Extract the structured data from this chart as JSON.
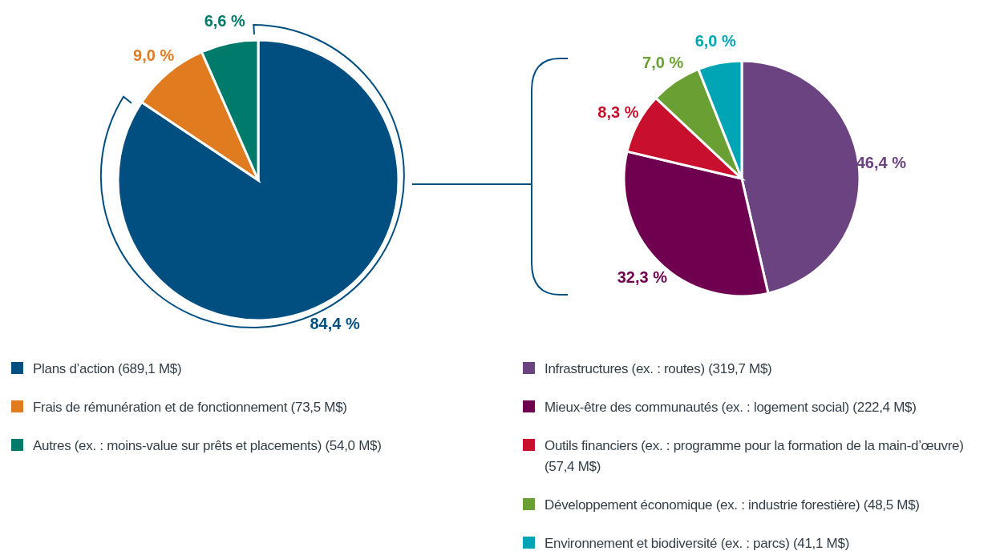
{
  "chart_data": [
    {
      "type": "pie",
      "categories": [
        "Plans d’action (689,1 M$)",
        "Frais de rémunération et de fonctionnement (73,5 M$)",
        "Autres (ex. : moins-value sur prêts et placements) (54,0 M$)"
      ],
      "values": [
        84.4,
        9.0,
        6.6
      ],
      "colors": [
        "#004f80",
        "#e07b20",
        "#007a6a"
      ],
      "value_labels": [
        "84,4 %",
        "9,0 %",
        "6,6 %"
      ],
      "legend": "bottom"
    },
    {
      "type": "pie",
      "categories": [
        "Infrastructures (ex. : routes) (319,7 M$)",
        "Mieux-être des communautés (ex. : logement social) (222,4 M$)",
        "Outils financiers (ex. : programme pour la formation de la main-d’œuvre) (57,4 M$)",
        "Développement économique (ex. : industrie forestière) (48,5 M$)",
        "Environnement et biodiversité (ex. : parcs) (41,1 M$)"
      ],
      "values": [
        46.4,
        32.3,
        8.3,
        7.0,
        6.0
      ],
      "colors": [
        "#6b4381",
        "#6f0050",
        "#c8102e",
        "#6a9f34",
        "#00a5b5"
      ],
      "value_labels": [
        "46,4 %",
        "32,3 %",
        "8,3 %",
        "7,0 %",
        "6,0 %"
      ],
      "legend": "bottom"
    }
  ]
}
